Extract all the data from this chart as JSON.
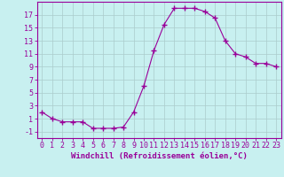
{
  "x": [
    0,
    1,
    2,
    3,
    4,
    5,
    6,
    7,
    8,
    9,
    10,
    11,
    12,
    13,
    14,
    15,
    16,
    17,
    18,
    19,
    20,
    21,
    22,
    23
  ],
  "y": [
    2,
    1,
    0.5,
    0.5,
    0.5,
    -0.5,
    -0.5,
    -0.5,
    -0.3,
    2,
    6,
    11.5,
    15.5,
    18,
    18,
    18,
    17.5,
    16.5,
    13,
    11,
    10.5,
    9.5,
    9.5,
    9
  ],
  "line_color": "#990099",
  "marker": "+",
  "marker_size": 4,
  "bg_color": "#c8f0f0",
  "grid_color": "#aacccc",
  "xlabel": "Windchill (Refroidissement éolien,°C)",
  "ylabel_ticks": [
    -1,
    1,
    3,
    5,
    7,
    9,
    11,
    13,
    15,
    17
  ],
  "xlim": [
    -0.5,
    23.5
  ],
  "ylim": [
    -2.0,
    19.0
  ],
  "xticks": [
    0,
    1,
    2,
    3,
    4,
    5,
    6,
    7,
    8,
    9,
    10,
    11,
    12,
    13,
    14,
    15,
    16,
    17,
    18,
    19,
    20,
    21,
    22,
    23
  ],
  "label_fontsize": 6.5,
  "tick_fontsize": 6.0,
  "spine_color": "#990099"
}
